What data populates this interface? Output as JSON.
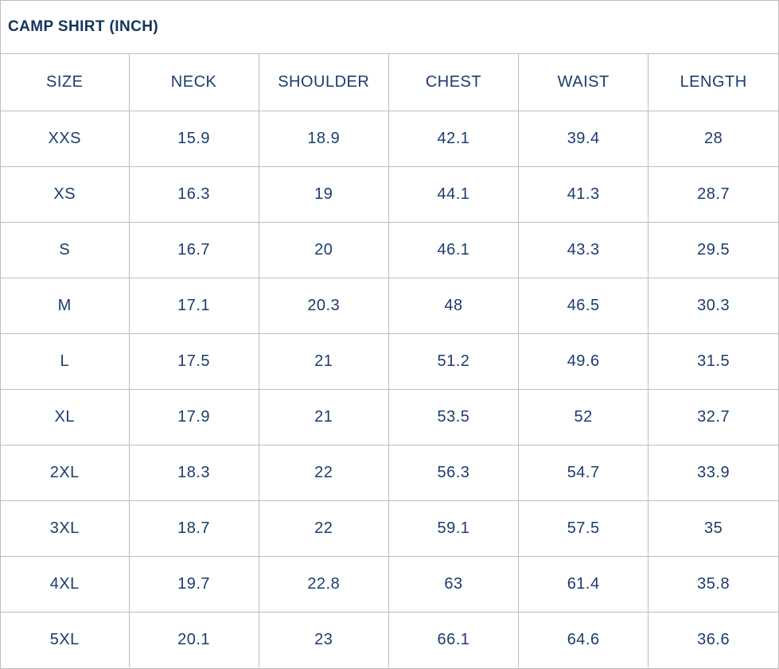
{
  "title": "CAMP SHIRT (INCH)",
  "colors": {
    "title_text": "#14335c",
    "cell_text": "#1d3c6e",
    "border": "#bdbdbd",
    "background": "#ffffff"
  },
  "table": {
    "columns": [
      "SIZE",
      "NECK",
      "SHOULDER",
      "CHEST",
      "WAIST",
      "LENGTH"
    ],
    "rows": [
      {
        "cells": [
          "XXS",
          "15.9",
          "18.9",
          "42.1",
          "39.4",
          "28"
        ]
      },
      {
        "cells": [
          "XS",
          "16.3",
          "19",
          "44.1",
          "41.3",
          "28.7"
        ]
      },
      {
        "cells": [
          "S",
          "16.7",
          "20",
          "46.1",
          "43.3",
          "29.5"
        ]
      },
      {
        "cells": [
          "M",
          "17.1",
          "20.3",
          "48",
          "46.5",
          "30.3"
        ]
      },
      {
        "cells": [
          "L",
          "17.5",
          "21",
          "51.2",
          "49.6",
          "31.5"
        ]
      },
      {
        "cells": [
          "XL",
          "17.9",
          "21",
          "53.5",
          "52",
          "32.7"
        ]
      },
      {
        "cells": [
          "2XL",
          "18.3",
          "22",
          "56.3",
          "54.7",
          "33.9"
        ]
      },
      {
        "cells": [
          "3XL",
          "18.7",
          "22",
          "59.1",
          "57.5",
          "35"
        ]
      },
      {
        "cells": [
          "4XL",
          "19.7",
          "22.8",
          "63",
          "61.4",
          "35.8"
        ]
      },
      {
        "cells": [
          "5XL",
          "20.1",
          "23",
          "66.1",
          "64.6",
          "36.6"
        ]
      }
    ]
  }
}
